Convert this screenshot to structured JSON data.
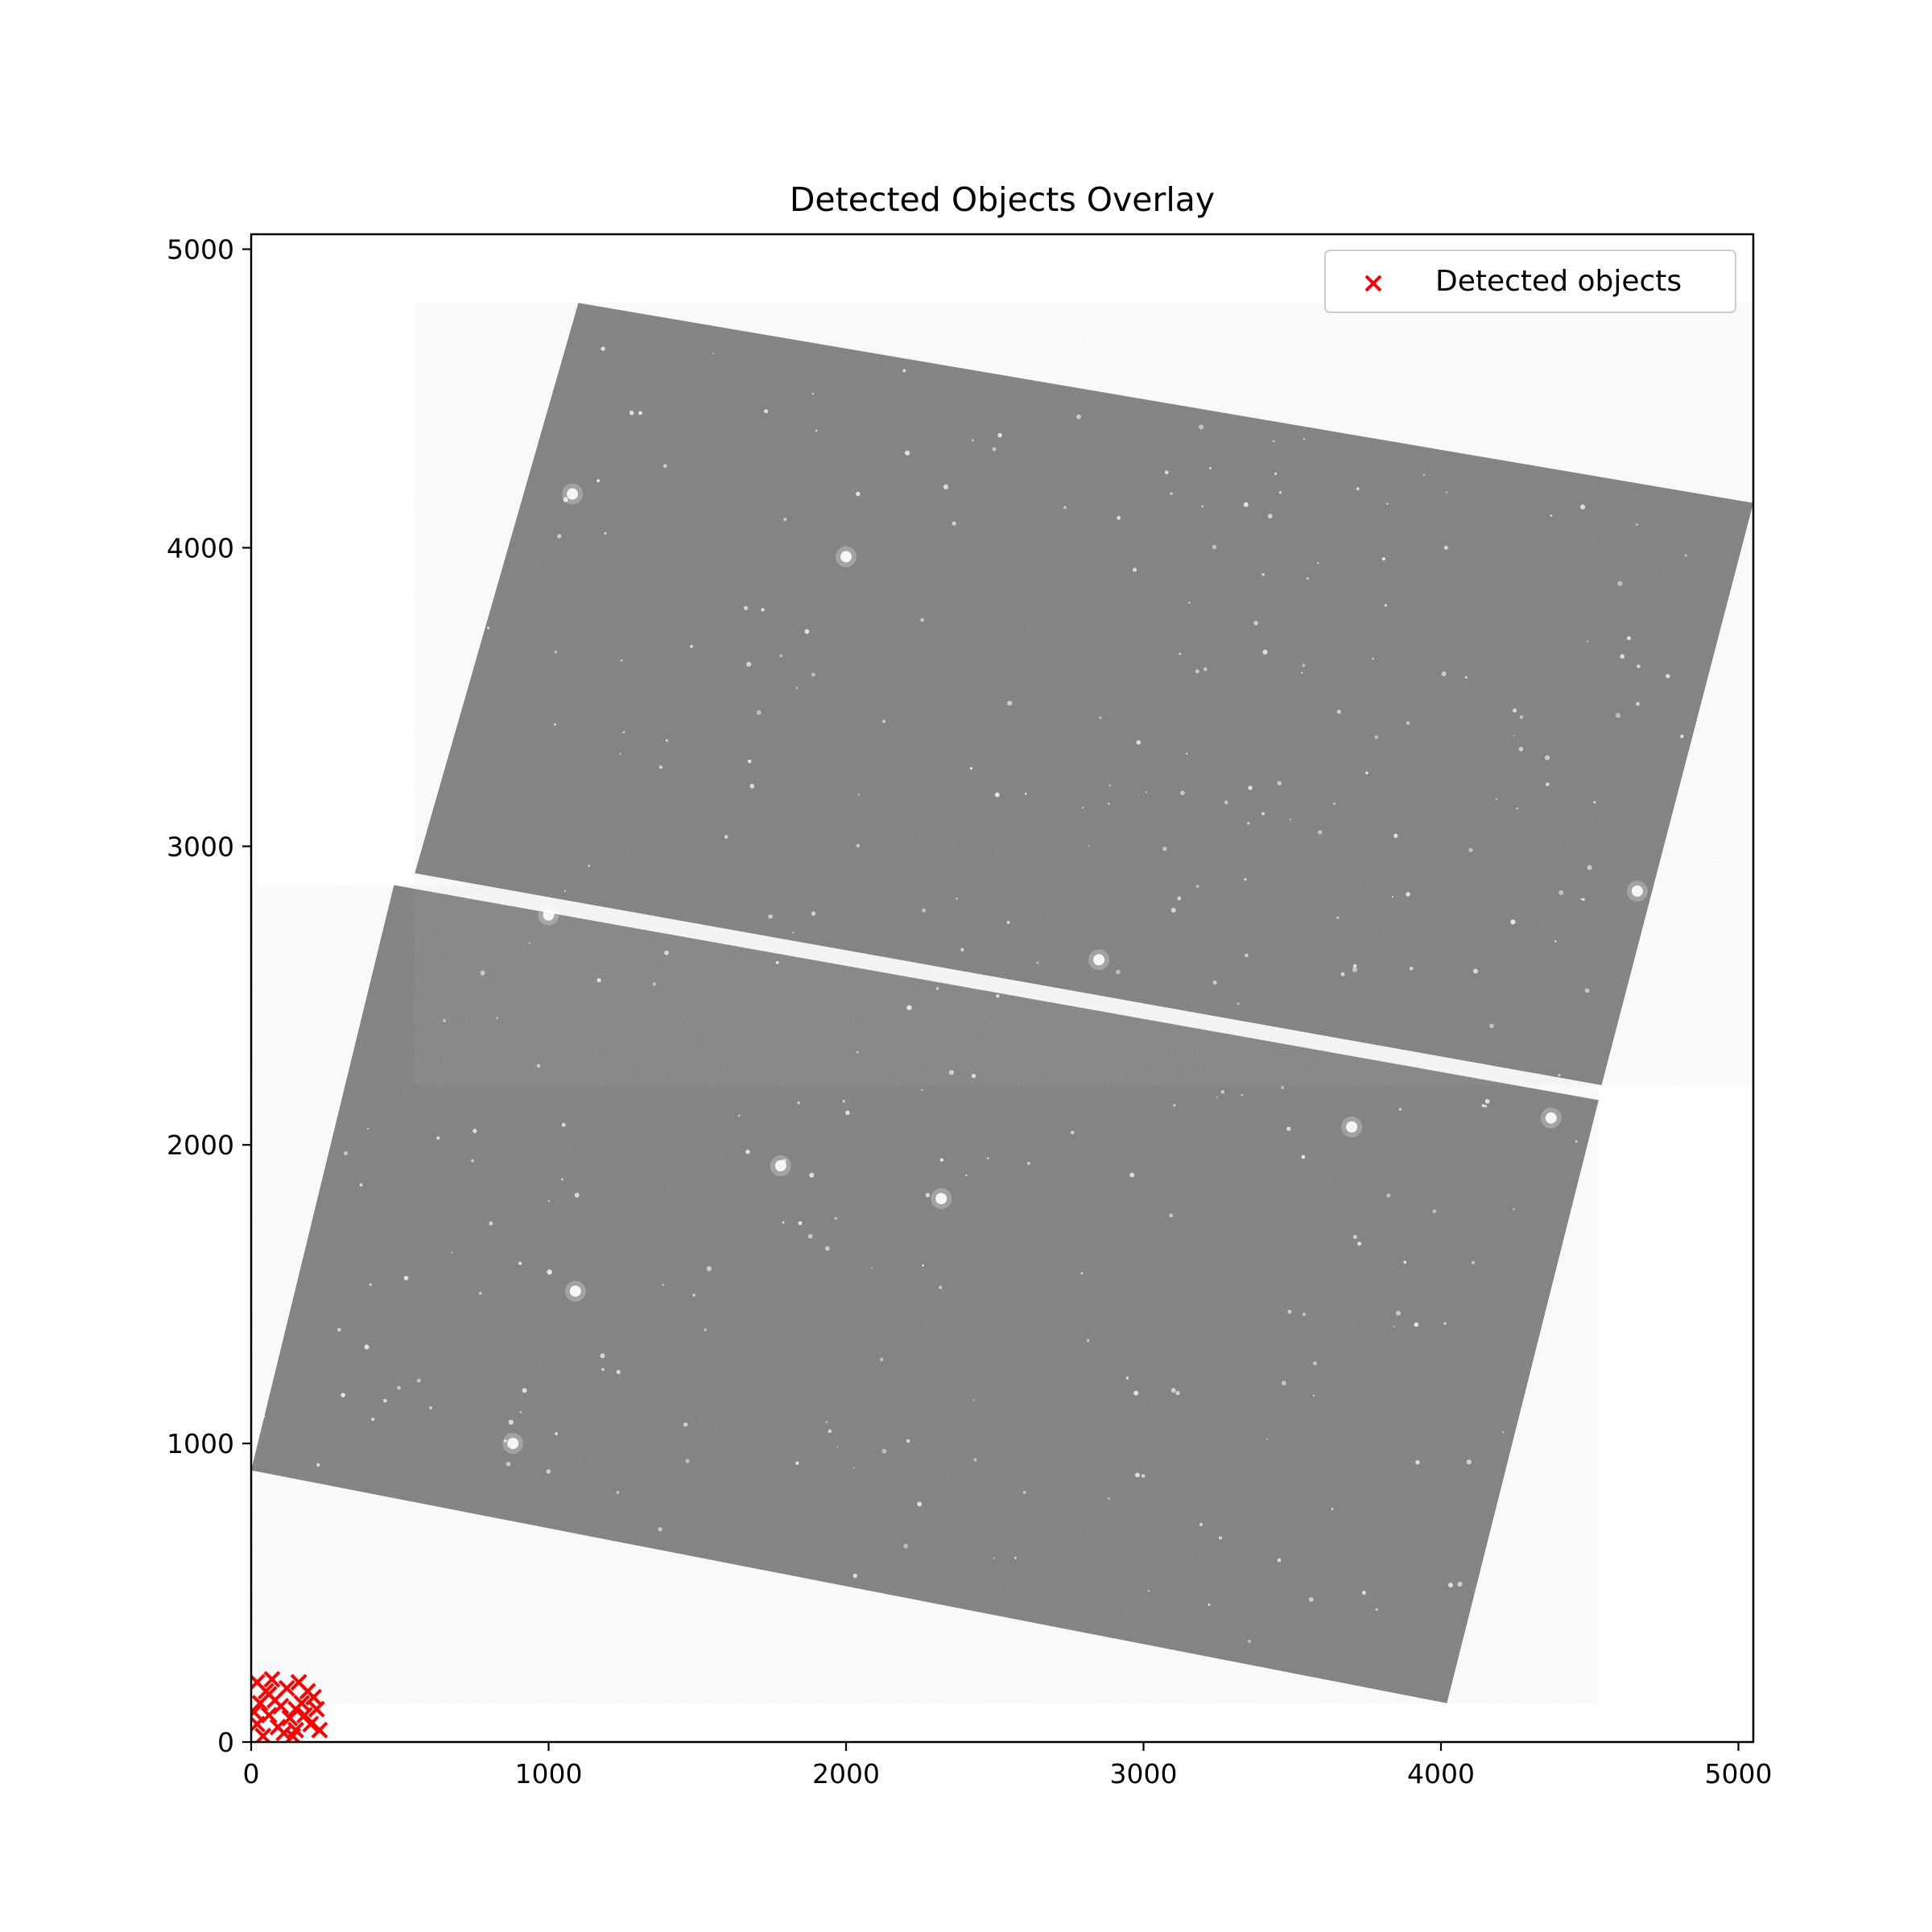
{
  "chart_data": {
    "type": "scatter",
    "title": "Detected Objects Overlay",
    "xlabel": "",
    "ylabel": "",
    "xlim": [
      0,
      5050
    ],
    "ylim": [
      0,
      5050
    ],
    "x_ticks": [
      0,
      1000,
      2000,
      3000,
      4000,
      5000
    ],
    "y_ticks": [
      0,
      1000,
      2000,
      3000,
      4000,
      5000
    ],
    "x_tick_labels": [
      "0",
      "1000",
      "2000",
      "3000",
      "4000",
      "5000"
    ],
    "y_tick_labels": [
      "0",
      "1000",
      "2000",
      "3000",
      "4000",
      "5000"
    ],
    "grid": false,
    "legend": {
      "position": "top-right",
      "entries": [
        "Detected objects"
      ]
    },
    "series": [
      {
        "name": "Detected objects",
        "marker": "x",
        "color": "#ff0000",
        "points": [
          [
            20,
            200
          ],
          [
            50,
            170
          ],
          [
            80,
            140
          ],
          [
            30,
            130
          ],
          [
            60,
            90
          ],
          [
            20,
            60
          ],
          [
            100,
            120
          ],
          [
            130,
            80
          ],
          [
            150,
            40
          ],
          [
            160,
            200
          ],
          [
            190,
            170
          ],
          [
            210,
            150
          ],
          [
            180,
            90
          ],
          [
            140,
            20
          ],
          [
            90,
            50
          ],
          [
            40,
            20
          ],
          [
            230,
            40
          ],
          [
            220,
            110
          ],
          [
            120,
            180
          ],
          [
            70,
            210
          ],
          [
            10,
            100
          ],
          [
            170,
            130
          ],
          [
            200,
            60
          ],
          [
            110,
            30
          ],
          [
            150,
            110
          ],
          [
            60,
            160
          ]
        ]
      }
    ],
    "background_image": {
      "description": "grayscale sky survey mosaic with two rotated detector chips",
      "chips": [
        {
          "corners": [
            [
              0,
              910
            ],
            [
              4020,
              130
            ],
            [
              4530,
              2150
            ],
            [
              480,
              2870
            ]
          ]
        },
        {
          "corners": [
            [
              550,
              2910
            ],
            [
              4540,
              2200
            ],
            [
              5050,
              4150
            ],
            [
              1100,
              4820
            ]
          ]
        }
      ],
      "bright_sources": [
        [
          1000,
          2770
        ],
        [
          1780,
          1930
        ],
        [
          2320,
          1820
        ],
        [
          1080,
          4180
        ],
        [
          2000,
          3970
        ],
        [
          3700,
          2060
        ],
        [
          880,
          1000
        ],
        [
          1090,
          1510
        ],
        [
          4370,
          2090
        ],
        [
          2850,
          2620
        ],
        [
          4660,
          2850
        ]
      ],
      "fill_color": "#7f7f7f"
    }
  }
}
